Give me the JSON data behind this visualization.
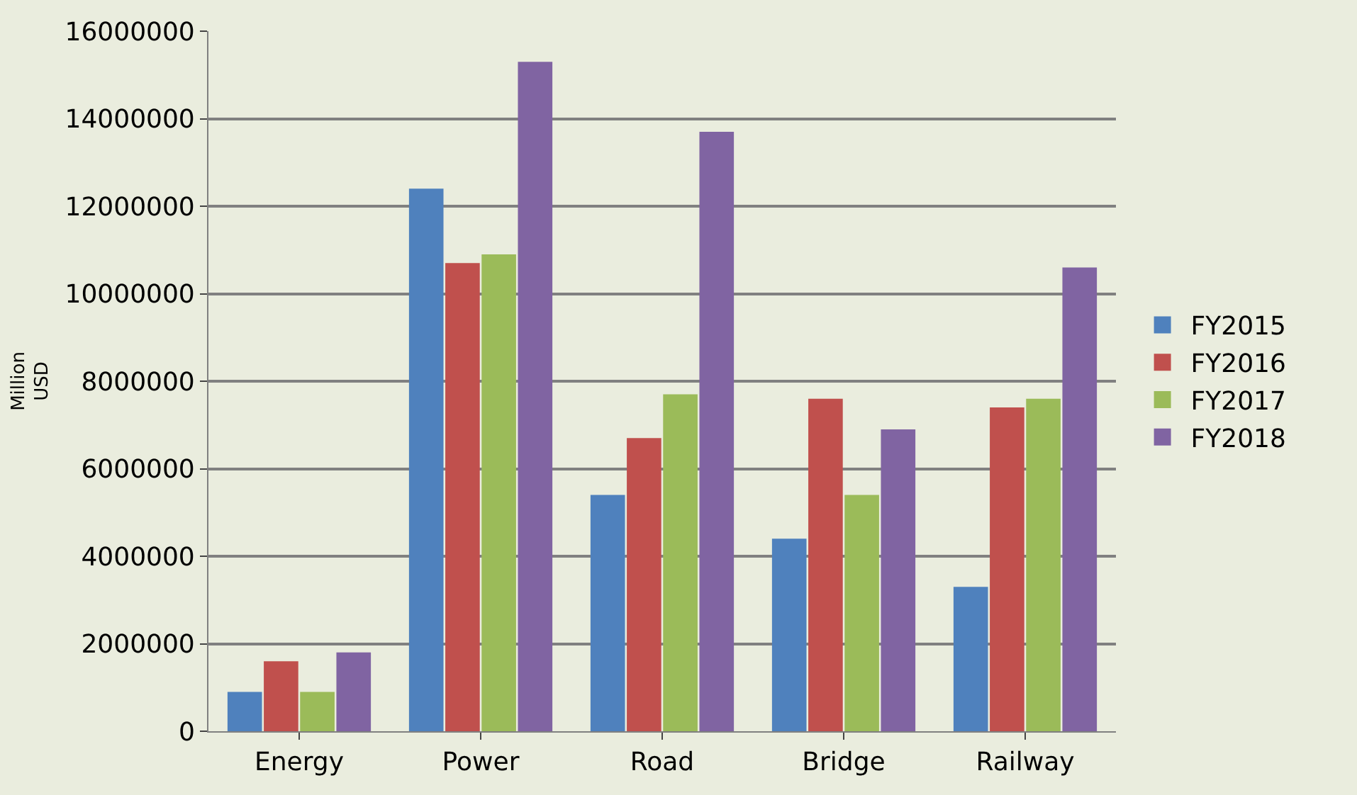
{
  "chart_data": {
    "type": "bar",
    "ylabel": "Million\nUSD",
    "categories": [
      "Energy",
      "Power",
      "Road",
      "Bridge",
      "Railway"
    ],
    "series": [
      {
        "name": "FY2015",
        "color": "#4f81bd",
        "values": [
          900000,
          12400000,
          5400000,
          4400000,
          3300000
        ]
      },
      {
        "name": "FY2016",
        "color": "#c0504d",
        "values": [
          1600000,
          10700000,
          6700000,
          7600000,
          7400000
        ]
      },
      {
        "name": "FY2017",
        "color": "#9bbb59",
        "values": [
          900000,
          10900000,
          7700000,
          5400000,
          7600000
        ]
      },
      {
        "name": "FY2018",
        "color": "#8064a2",
        "values": [
          1800000,
          15300000,
          13700000,
          6900000,
          10600000
        ]
      }
    ],
    "ylim": [
      0,
      16000000
    ],
    "yticks": [
      0,
      2000000,
      4000000,
      6000000,
      8000000,
      10000000,
      12000000,
      14000000,
      16000000
    ],
    "grid": "y",
    "legend": "right"
  }
}
